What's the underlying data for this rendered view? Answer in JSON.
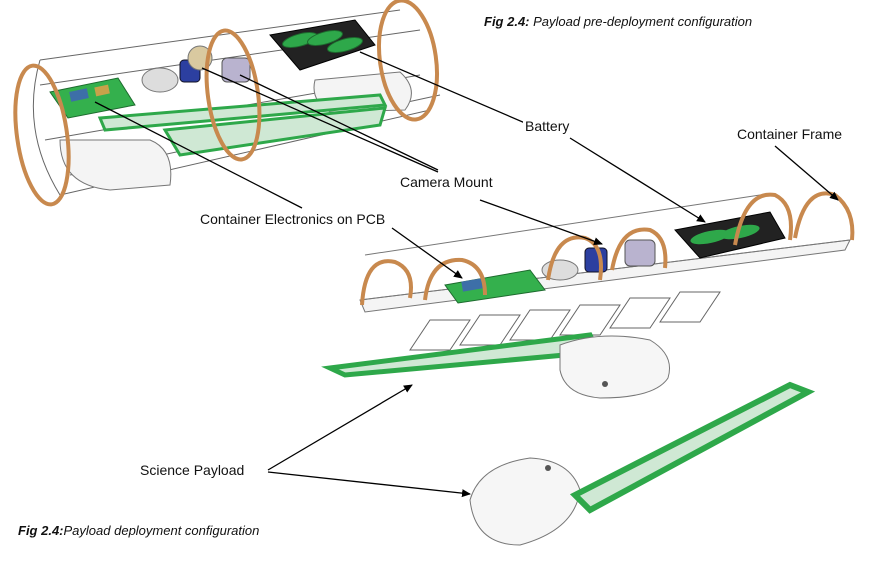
{
  "captions": {
    "top": {
      "prefix": "Fig 2.4:",
      "text": " Payload pre-deployment configuration"
    },
    "bottom": {
      "prefix": "Fig 2.4:",
      "text": "Payload deployment configuration"
    }
  },
  "labels": {
    "battery": "Battery",
    "container_frame": "Container Frame",
    "camera_mount": "Camera Mount",
    "container_electronics": "Container Electronics on PCB",
    "science_payload": "Science Payload"
  },
  "colors": {
    "ring": "#c8894e",
    "ring_dark": "#8a5a2b",
    "green": "#2ea84a",
    "green_dark": "#1d6b2e",
    "panel_fill": "#cfe8d4",
    "line": "#555555",
    "arrow": "#000000"
  }
}
